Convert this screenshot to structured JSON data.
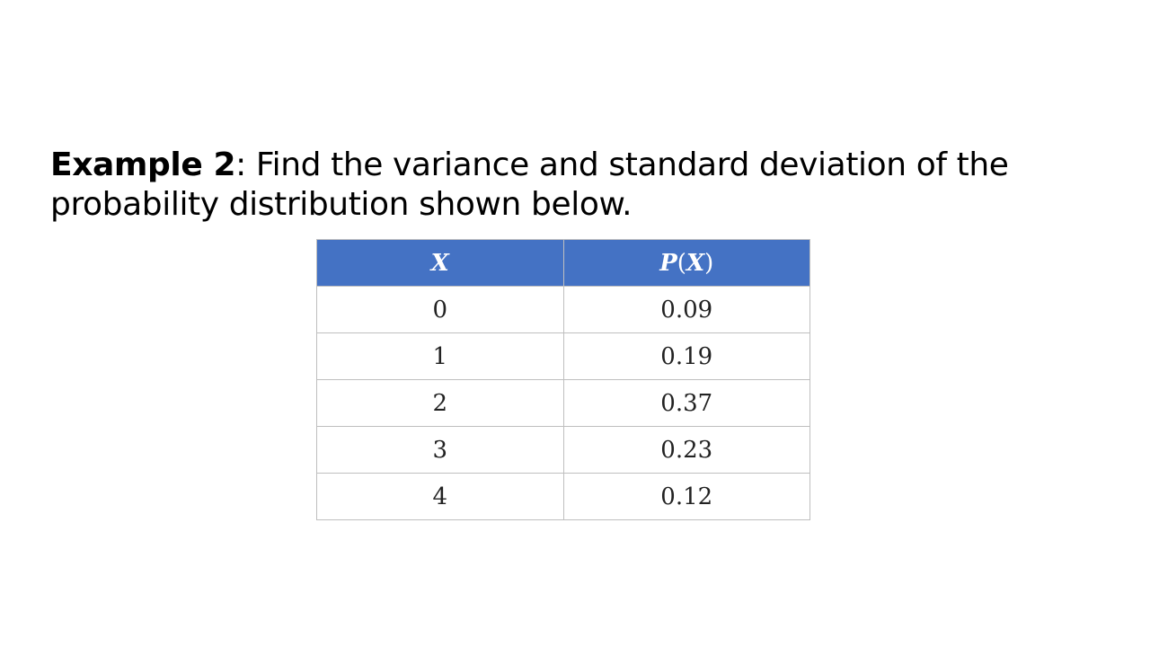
{
  "prompt": {
    "label": "Example 2",
    "separator": ":",
    "text": " Find the variance and standard deviation of the probability distribution shown below."
  },
  "table": {
    "headers": {
      "x": "X",
      "px_fn": "P",
      "px_open": "(",
      "px_var": "X",
      "px_close": ")"
    },
    "header_color": "#4472c4",
    "rows": [
      {
        "x": "0",
        "p": "0.09"
      },
      {
        "x": "1",
        "p": "0.19"
      },
      {
        "x": "2",
        "p": "0.37"
      },
      {
        "x": "3",
        "p": "0.23"
      },
      {
        "x": "4",
        "p": "0.12"
      }
    ]
  }
}
